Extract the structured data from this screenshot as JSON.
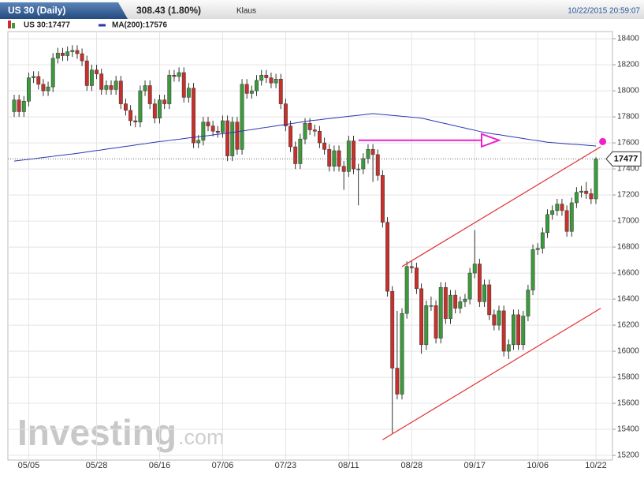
{
  "chart_data": {
    "type": "candlestick",
    "title": "US 30 (Daily)",
    "change": "308.43 (1.80%)",
    "user": "Klaus",
    "timestamp": "10/22/2015 20:59:07",
    "legend_main": "US 30:17477",
    "last_price": 17477,
    "up_color": "#3c9a3c",
    "down_color": "#c8302c",
    "grid": true,
    "ylim": [
      15164,
      18455
    ],
    "yticks": [
      15200,
      15400,
      15600,
      15800,
      16000,
      16200,
      16400,
      16600,
      16800,
      17000,
      17200,
      17400,
      17600,
      17800,
      18000,
      18200,
      18400
    ],
    "categories": [
      null,
      null,
      null,
      "05/05",
      null,
      null,
      null,
      null,
      null,
      null,
      null,
      null,
      null,
      null,
      null,
      null,
      null,
      "05/28",
      null,
      null,
      null,
      null,
      null,
      null,
      null,
      null,
      null,
      null,
      null,
      null,
      "06/16",
      null,
      null,
      null,
      null,
      null,
      null,
      null,
      null,
      null,
      null,
      null,
      null,
      "07/06",
      null,
      null,
      null,
      null,
      null,
      null,
      null,
      null,
      null,
      null,
      null,
      null,
      "07/23",
      null,
      null,
      null,
      null,
      null,
      null,
      null,
      null,
      null,
      null,
      null,
      null,
      "08/11",
      null,
      null,
      null,
      null,
      null,
      null,
      null,
      null,
      null,
      null,
      null,
      null,
      "08/28",
      null,
      null,
      null,
      null,
      null,
      null,
      null,
      null,
      null,
      null,
      null,
      null,
      "09/17",
      null,
      null,
      null,
      null,
      null,
      null,
      null,
      null,
      null,
      null,
      null,
      null,
      "10/06",
      null,
      null,
      null,
      null,
      null,
      null,
      null,
      null,
      null,
      null,
      null,
      "10/22"
    ],
    "open": [
      17840,
      17930,
      17840,
      17920,
      18100,
      18110,
      18050,
      18000,
      18030,
      18250,
      18290,
      18270,
      18300,
      18310,
      18285,
      18230,
      18040,
      18160,
      18130,
      18010,
      18040,
      18010,
      18075,
      17900,
      17850,
      17770,
      17760,
      18000,
      18040,
      17900,
      17790,
      17930,
      17900,
      18120,
      18110,
      18140,
      17950,
      18020,
      17600,
      17620,
      17760,
      17730,
      17690,
      17680,
      17770,
      17500,
      17760,
      17550,
      18050,
      17980,
      18000,
      18080,
      18120,
      18100,
      18060,
      18090,
      17900,
      17730,
      17570,
      17440,
      17630,
      17750,
      17700,
      17690,
      17600,
      17550,
      17420,
      17540,
      17420,
      17380,
      17615,
      17400,
      17400,
      17480,
      17550,
      17510,
      17350,
      16990,
      16460,
      15870,
      15670,
      16290,
      16650,
      16640,
      16480,
      16050,
      16350,
      16350,
      16100,
      16490,
      16250,
      16430,
      16330,
      16380,
      16400,
      16600,
      16670,
      16380,
      16510,
      16280,
      16200,
      16310,
      16000,
      16050,
      16280,
      16050,
      16270,
      16470,
      16780,
      16790,
      16910,
      17050,
      17080,
      17130,
      17080,
      16920,
      17140,
      17220,
      17230,
      17210,
      17170
    ],
    "high": [
      17970,
      17970,
      17960,
      18140,
      18150,
      18150,
      18090,
      18070,
      18290,
      18330,
      18330,
      18340,
      18350,
      18350,
      18325,
      18270,
      18200,
      18200,
      18170,
      18080,
      18080,
      18115,
      18115,
      17940,
      17890,
      17810,
      18040,
      18080,
      18080,
      17940,
      17970,
      17970,
      18160,
      18160,
      18180,
      18180,
      18060,
      18060,
      17660,
      17800,
      17800,
      17770,
      17730,
      17810,
      17810,
      17800,
      17800,
      18090,
      18090,
      18040,
      18120,
      18160,
      18160,
      18140,
      18130,
      18130,
      17940,
      17770,
      17610,
      17670,
      17790,
      17790,
      17740,
      17730,
      17640,
      17590,
      17580,
      17580,
      17460,
      17655,
      17655,
      17440,
      17520,
      17590,
      17590,
      17550,
      17390,
      17030,
      16500,
      16310,
      16330,
      16690,
      16690,
      16680,
      16520,
      16390,
      16420,
      16390,
      16530,
      16530,
      16470,
      16470,
      16420,
      16440,
      16640,
      16930,
      16710,
      16550,
      16550,
      16320,
      16350,
      16350,
      16090,
      16320,
      16320,
      16310,
      16510,
      16820,
      16830,
      16950,
      17090,
      17120,
      17170,
      17170,
      17120,
      17180,
      17260,
      17270,
      17300,
      17250,
      17490
    ],
    "low": [
      17800,
      17800,
      17800,
      17880,
      18060,
      18010,
      17960,
      17960,
      17990,
      18210,
      18230,
      18230,
      18260,
      18245,
      18190,
      18000,
      18000,
      18090,
      17970,
      17970,
      17970,
      17970,
      17860,
      17810,
      17730,
      17720,
      17720,
      17960,
      17860,
      17750,
      17750,
      17860,
      17860,
      18070,
      18070,
      17910,
      17910,
      17560,
      17560,
      17580,
      17690,
      17650,
      17640,
      17640,
      17460,
      17460,
      17510,
      17510,
      17940,
      17940,
      17960,
      18040,
      18060,
      18020,
      18020,
      17860,
      17690,
      17530,
      17400,
      17400,
      17590,
      17660,
      17650,
      17560,
      17510,
      17380,
      17380,
      17380,
      17240,
      17340,
      17360,
      17120,
      17360,
      17440,
      17300,
      17310,
      16950,
      16420,
      15370,
      15630,
      15630,
      16250,
      16600,
      16440,
      15980,
      16010,
      16310,
      16060,
      16060,
      16210,
      16210,
      16290,
      16290,
      16340,
      16360,
      16560,
      16340,
      16340,
      16240,
      16160,
      16160,
      15960,
      15940,
      16010,
      16010,
      16010,
      16230,
      16430,
      16740,
      16750,
      16870,
      17010,
      17040,
      17040,
      16880,
      16880,
      17100,
      17180,
      17170,
      17130,
      17130
    ],
    "close": [
      17930,
      17840,
      17920,
      18100,
      18110,
      18050,
      18000,
      18030,
      18250,
      18290,
      18270,
      18300,
      18310,
      18285,
      18230,
      18040,
      18160,
      18130,
      18010,
      18040,
      18010,
      18075,
      17900,
      17850,
      17770,
      17760,
      18000,
      18040,
      17900,
      17790,
      17930,
      17900,
      18120,
      18110,
      18140,
      17950,
      18020,
      17600,
      17620,
      17760,
      17730,
      17690,
      17680,
      17770,
      17500,
      17760,
      17550,
      18050,
      17980,
      18000,
      18080,
      18120,
      18100,
      18060,
      18090,
      17900,
      17730,
      17570,
      17440,
      17630,
      17750,
      17700,
      17690,
      17600,
      17550,
      17420,
      17540,
      17420,
      17380,
      17615,
      17400,
      17400,
      17480,
      17550,
      17510,
      17350,
      16990,
      16460,
      15870,
      15670,
      16290,
      16650,
      16640,
      16480,
      16050,
      16350,
      16350,
      16100,
      16490,
      16250,
      16430,
      16330,
      16380,
      16400,
      16600,
      16670,
      16380,
      16510,
      16280,
      16200,
      16310,
      16000,
      16050,
      16280,
      16050,
      16270,
      16470,
      16780,
      16790,
      16910,
      17050,
      17080,
      17130,
      17080,
      16920,
      17140,
      17220,
      17230,
      17210,
      17170,
      17477
    ],
    "series": [
      {
        "name": "MA(200):17576",
        "color": "#2a35b0",
        "values": [
          17460,
          17465,
          17469,
          17474,
          17478,
          17483,
          17488,
          17492,
          17497,
          17502,
          17506,
          17511,
          17515,
          17520,
          17525,
          17531,
          17536,
          17541,
          17546,
          17552,
          17557,
          17562,
          17568,
          17573,
          17578,
          17584,
          17589,
          17594,
          17600,
          17605,
          17610,
          17614,
          17619,
          17624,
          17628,
          17633,
          17638,
          17642,
          17647,
          17652,
          17656,
          17661,
          17666,
          17670,
          17675,
          17680,
          17686,
          17691,
          17697,
          17702,
          17708,
          17714,
          17719,
          17725,
          17731,
          17736,
          17742,
          17747,
          17753,
          17759,
          17764,
          17770,
          17774,
          17778,
          17783,
          17787,
          17791,
          17795,
          17800,
          17804,
          17808,
          17812,
          17816,
          17821,
          17825,
          17822,
          17818,
          17815,
          17811,
          17808,
          17804,
          17801,
          17797,
          17794,
          17790,
          17782,
          17773,
          17765,
          17756,
          17748,
          17739,
          17731,
          17722,
          17714,
          17705,
          17697,
          17688,
          17680,
          17674,
          17668,
          17663,
          17657,
          17651,
          17645,
          17640,
          17634,
          17628,
          17622,
          17617,
          17611,
          17605,
          17602,
          17599,
          17596,
          17593,
          17590,
          17588,
          17585,
          17582,
          17579,
          17576
        ]
      }
    ],
    "trendlines": [
      {
        "color": "#e03030",
        "x": [
          80,
          121
        ],
        "y": [
          16650,
          17570
        ]
      },
      {
        "color": "#e03030",
        "x": [
          76,
          121
        ],
        "y": [
          15320,
          16330
        ]
      }
    ],
    "arrow": {
      "color": "#ee22cc",
      "x": [
        71,
        100
      ],
      "y": [
        17620,
        17620
      ]
    },
    "marker": {
      "color": "#ee22cc",
      "x": 121.4,
      "y": 17610
    },
    "watermark": {
      "brand": "Investing",
      "suffix": ".com"
    }
  }
}
